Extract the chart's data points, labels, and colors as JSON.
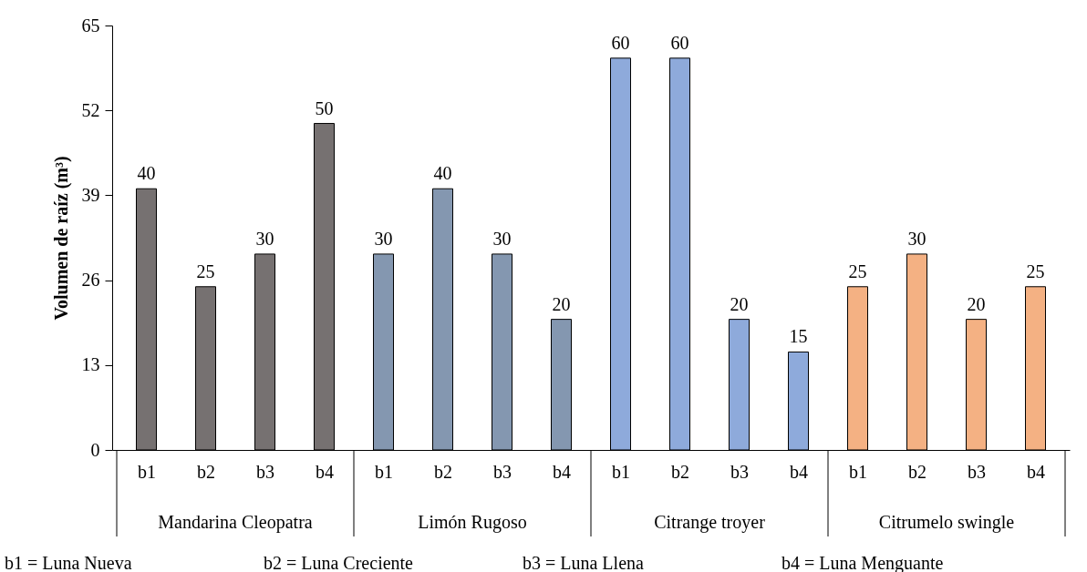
{
  "chart_data": {
    "type": "bar",
    "ylabel": "Volumen de raíz (m³)",
    "categories": [
      "b1",
      "b2",
      "b3",
      "b4",
      "b1",
      "b2",
      "b3",
      "b4",
      "b1",
      "b2",
      "b3",
      "b4",
      "b1",
      "b2",
      "b3",
      "b4"
    ],
    "values": [
      40,
      25,
      30,
      50,
      30,
      40,
      30,
      20,
      60,
      60,
      20,
      15,
      25,
      30,
      20,
      25
    ],
    "colors": [
      "#767171",
      "#767171",
      "#767171",
      "#767171",
      "#8497b0",
      "#8497b0",
      "#8497b0",
      "#8497b0",
      "#8eaadb",
      "#8eaadb",
      "#8eaadb",
      "#8eaadb",
      "#f4b183",
      "#f4b183",
      "#f4b183",
      "#f4b183"
    ],
    "ylim": [
      0,
      65
    ],
    "yticks": [
      0,
      13,
      26,
      39,
      52,
      65
    ],
    "data_labels": true,
    "annotations": [
      "Mandarina Cleopatra",
      "Limón Rugoso",
      "Citrange troyer",
      "Citrumelo swingle",
      "b1 = Luna Nueva",
      "b2 = Luna Creciente",
      "b3 = Luna Llena",
      "b4 = Luna Menguante"
    ]
  }
}
